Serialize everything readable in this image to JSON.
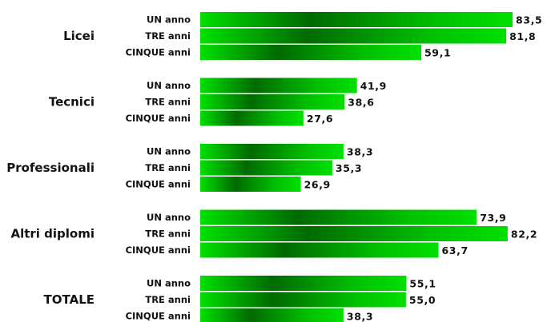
{
  "chart_data": {
    "type": "bar",
    "orientation": "horizontal",
    "title": "",
    "xlabel": "",
    "ylabel": "",
    "xlim": [
      0,
      85
    ],
    "grid": false,
    "legend": "none",
    "bar_color": "#00c000",
    "bar_highlight_color": "#00e000",
    "bar_dark_color": "#006a00",
    "groups": [
      {
        "label": "Licei",
        "bars": [
          {
            "label": "UN anno",
            "value": 83.5,
            "value_label": "83,5"
          },
          {
            "label": "TRE anni",
            "value": 81.8,
            "value_label": "81,8"
          },
          {
            "label": "CINQUE anni",
            "value": 59.1,
            "value_label": "59,1"
          }
        ]
      },
      {
        "label": "Tecnici",
        "bars": [
          {
            "label": "UN anno",
            "value": 41.9,
            "value_label": "41,9"
          },
          {
            "label": "TRE anni",
            "value": 38.6,
            "value_label": "38,6"
          },
          {
            "label": "CINQUE anni",
            "value": 27.6,
            "value_label": "27,6"
          }
        ]
      },
      {
        "label": "Professionali",
        "bars": [
          {
            "label": "UN anno",
            "value": 38.3,
            "value_label": "38,3"
          },
          {
            "label": "TRE anni",
            "value": 35.3,
            "value_label": "35,3"
          },
          {
            "label": "CINQUE anni",
            "value": 26.9,
            "value_label": "26,9"
          }
        ]
      },
      {
        "label": "Altri diplomi",
        "bars": [
          {
            "label": "UN anno",
            "value": 73.9,
            "value_label": "73,9"
          },
          {
            "label": "TRE anni",
            "value": 82.2,
            "value_label": "82,2"
          },
          {
            "label": "CINQUE anni",
            "value": 63.7,
            "value_label": "63,7"
          }
        ]
      },
      {
        "label": "TOTALE",
        "bars": [
          {
            "label": "UN anno",
            "value": 55.1,
            "value_label": "55,1"
          },
          {
            "label": "TRE anni",
            "value": 55.0,
            "value_label": "55,0"
          },
          {
            "label": "CINQUE anni",
            "value": 38.3,
            "value_label": "38,3"
          }
        ]
      }
    ]
  }
}
